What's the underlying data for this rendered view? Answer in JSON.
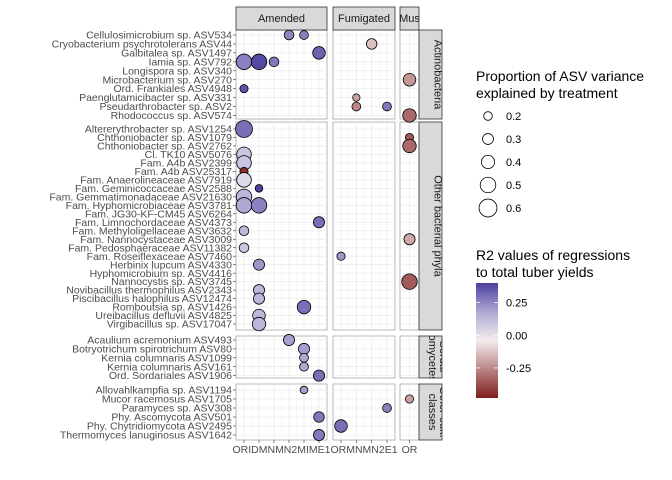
{
  "chart_data": {
    "type": "scatter",
    "subtype": "faceted bubble plot",
    "col_facets": [
      {
        "label": "Amended",
        "x": [
          "ORI",
          "D",
          "MN",
          "MN2",
          "MI",
          "ME1"
        ]
      },
      {
        "label": "Fumigated",
        "x": [
          "OR",
          "MN",
          "MN2",
          "E1"
        ]
      },
      {
        "label": "Mus",
        "x": [
          "OR"
        ]
      }
    ],
    "x_axis_text": {
      "Amended": "ORIDMNMN2MIME1",
      "Fumigated": "ORMNMN2E1",
      "Mus": "OR"
    },
    "row_facets": [
      {
        "label": "Actinobacteria",
        "label_lines": [
          "Actinobacteria"
        ],
        "taxa": [
          "Cellulosimicrobium sp. ASV534",
          "Cryobacterium psychrotolerans ASV44",
          "Galbitalea sp. ASV1497",
          "Iamia sp. ASV792",
          "Longispora sp. ASV340",
          "Microbacterium sp. ASV270",
          "Ord. Frankiales ASV4948",
          "Paenglutamicibacter sp. ASV331",
          "Pseudarthrobacter sp. ASV2",
          "Rhodococcus sp. ASV574"
        ]
      },
      {
        "label": "Other bacterial phyla",
        "label_lines": [
          "Other bacterial phyla"
        ],
        "taxa": [
          "Altererythrobacter sp. ASV1254",
          "Chthoniobacter sp. ASV1079",
          "Chthoniobacter sp. ASV2762",
          "Cl. TK10 ASV5076",
          "Fam. A4b ASV2399",
          "Fam. A4b ASV25317",
          "Fam. Anaerolineaceae ASV7919",
          "Fam. Geminicoccaceae ASV2588",
          "Fam. Gemmatimonadaceae ASV21630",
          "Fam. Hyphomicrobiaceae ASV3781",
          "Fam. JG30-KF-CM45 ASV6264",
          "Fam. Limnochordaceae ASV4373",
          "Fam. Methyloligellaceae ASV3632",
          "Fam. Nannocystaceae ASV3009",
          "Fam. Pedosphaeraceae ASV11382",
          "Fam. Roseiflexaceae ASV7460",
          "Herbinix lupcum ASV4330",
          "Hyphomicrobium sp. ASV4416",
          "Nannocystis sp. ASV3745",
          "Novibacillus thermophilus ASV2343",
          "Piscibacillus halophilus ASV12474",
          "Romboutsia sp. ASV1426",
          "Ureibacillus defluvii ASV4825",
          "Virgibacillus sp. ASV17047"
        ]
      },
      {
        "label": "Sordariomycetes",
        "label_lines": [
          "Sordar",
          "iomycetes"
        ],
        "taxa": [
          "Acaulium acremonium ASV493",
          "Botryotrichum spirotrichum ASV80",
          "Kernia columnaris ASV1099",
          "Kernia columnaris ASV161",
          "Ord. Sordariales ASV1906"
        ]
      },
      {
        "label": "Other euk. classes",
        "label_lines": [
          "Other euk.",
          "classes"
        ],
        "taxa": [
          "Allovahlkampfia sp. ASV1194",
          "Mucor racemosus ASV1705",
          "Paramyces sp. ASV308",
          "Phy. Ascomycota ASV501",
          "Phy. Chytridiomycota ASV2495",
          "Thermomyces lanuginosus ASV1642"
        ]
      }
    ],
    "points": [
      {
        "row": 0,
        "taxon": 0,
        "col": 0,
        "x": "MN2",
        "size": 0.25,
        "r2": 0.25
      },
      {
        "row": 0,
        "taxon": 0,
        "col": 0,
        "x": "MI",
        "size": 0.22,
        "r2": 0.26
      },
      {
        "row": 0,
        "taxon": 1,
        "col": 1,
        "x": "MN2",
        "size": 0.28,
        "r2": -0.13
      },
      {
        "row": 0,
        "taxon": 2,
        "col": 0,
        "x": "ME1",
        "size": 0.35,
        "r2": 0.33
      },
      {
        "row": 0,
        "taxon": 3,
        "col": 0,
        "x": "MN",
        "size": 0.25,
        "r2": 0.28
      },
      {
        "row": 0,
        "taxon": 3,
        "col": 0,
        "x": "ORI",
        "size": 0.45,
        "r2": 0.26
      },
      {
        "row": 0,
        "taxon": 3,
        "col": 0,
        "x": "D",
        "size": 0.45,
        "r2": 0.38
      },
      {
        "row": 0,
        "taxon": 5,
        "col": 2,
        "x": "OR",
        "size": 0.35,
        "r2": -0.22
      },
      {
        "row": 0,
        "taxon": 6,
        "col": 0,
        "x": "ORI",
        "size": 0.2,
        "r2": 0.36
      },
      {
        "row": 0,
        "taxon": 7,
        "col": 1,
        "x": "MN",
        "size": 0.17,
        "r2": -0.2
      },
      {
        "row": 0,
        "taxon": 8,
        "col": 1,
        "x": "MN",
        "size": 0.22,
        "r2": -0.25
      },
      {
        "row": 0,
        "taxon": 8,
        "col": 1,
        "x": "E1",
        "size": 0.22,
        "r2": 0.28
      },
      {
        "row": 0,
        "taxon": 9,
        "col": 2,
        "x": "OR",
        "size": 0.38,
        "r2": -0.32
      },
      {
        "row": 1,
        "taxon": 0,
        "col": 0,
        "x": "ORI",
        "size": 0.5,
        "r2": 0.3
      },
      {
        "row": 1,
        "taxon": 1,
        "col": 2,
        "x": "OR",
        "size": 0.2,
        "r2": -0.36
      },
      {
        "row": 1,
        "taxon": 2,
        "col": 2,
        "x": "OR",
        "size": 0.38,
        "r2": -0.32
      },
      {
        "row": 1,
        "taxon": 3,
        "col": 0,
        "x": "ORI",
        "size": 0.42,
        "r2": 0.12
      },
      {
        "row": 1,
        "taxon": 4,
        "col": 0,
        "x": "ORI",
        "size": 0.42,
        "r2": 0.12
      },
      {
        "row": 1,
        "taxon": 5,
        "col": 0,
        "x": "ORI",
        "size": 0.2,
        "r2": -0.45
      },
      {
        "row": 1,
        "taxon": 6,
        "col": 0,
        "x": "ORI",
        "size": 0.42,
        "r2": 0.08
      },
      {
        "row": 1,
        "taxon": 7,
        "col": 0,
        "x": "D",
        "size": 0.18,
        "r2": 0.4
      },
      {
        "row": 1,
        "taxon": 8,
        "col": 0,
        "x": "ORI",
        "size": 0.45,
        "r2": 0.15
      },
      {
        "row": 1,
        "taxon": 9,
        "col": 0,
        "x": "ORI",
        "size": 0.45,
        "r2": 0.18
      },
      {
        "row": 1,
        "taxon": 9,
        "col": 0,
        "x": "D",
        "size": 0.45,
        "r2": 0.26
      },
      {
        "row": 1,
        "taxon": 11,
        "col": 0,
        "x": "ME1",
        "size": 0.3,
        "r2": 0.3
      },
      {
        "row": 1,
        "taxon": 12,
        "col": 0,
        "x": "ORI",
        "size": 0.25,
        "r2": 0.15
      },
      {
        "row": 1,
        "taxon": 13,
        "col": 2,
        "x": "OR",
        "size": 0.3,
        "r2": -0.18
      },
      {
        "row": 1,
        "taxon": 14,
        "col": 0,
        "x": "ORI",
        "size": 0.25,
        "r2": 0.12
      },
      {
        "row": 1,
        "taxon": 15,
        "col": 1,
        "x": "OR",
        "size": 0.2,
        "r2": 0.22
      },
      {
        "row": 1,
        "taxon": 16,
        "col": 0,
        "x": "D",
        "size": 0.3,
        "r2": 0.22
      },
      {
        "row": 1,
        "taxon": 18,
        "col": 2,
        "x": "OR",
        "size": 0.45,
        "r2": -0.35
      },
      {
        "row": 1,
        "taxon": 19,
        "col": 0,
        "x": "D",
        "size": 0.3,
        "r2": 0.15
      },
      {
        "row": 1,
        "taxon": 20,
        "col": 0,
        "x": "D",
        "size": 0.3,
        "r2": 0.15
      },
      {
        "row": 1,
        "taxon": 21,
        "col": 0,
        "x": "MI",
        "size": 0.38,
        "r2": 0.3
      },
      {
        "row": 1,
        "taxon": 22,
        "col": 0,
        "x": "D",
        "size": 0.35,
        "r2": 0.15
      },
      {
        "row": 1,
        "taxon": 23,
        "col": 0,
        "x": "D",
        "size": 0.38,
        "r2": 0.15
      },
      {
        "row": 2,
        "taxon": 0,
        "col": 0,
        "x": "MN2",
        "size": 0.3,
        "r2": 0.2
      },
      {
        "row": 2,
        "taxon": 1,
        "col": 0,
        "x": "MI",
        "size": 0.3,
        "r2": 0.2
      },
      {
        "row": 2,
        "taxon": 2,
        "col": 0,
        "x": "MI",
        "size": 0.22,
        "r2": 0.18
      },
      {
        "row": 2,
        "taxon": 3,
        "col": 0,
        "x": "MI",
        "size": 0.22,
        "r2": 0.18
      },
      {
        "row": 2,
        "taxon": 4,
        "col": 0,
        "x": "ME1",
        "size": 0.3,
        "r2": 0.3
      },
      {
        "row": 3,
        "taxon": 0,
        "col": 0,
        "x": "MI",
        "size": 0.18,
        "r2": 0.2
      },
      {
        "row": 3,
        "taxon": 1,
        "col": 2,
        "x": "OR",
        "size": 0.2,
        "r2": -0.2
      },
      {
        "row": 3,
        "taxon": 2,
        "col": 1,
        "x": "E1",
        "size": 0.22,
        "r2": 0.26
      },
      {
        "row": 3,
        "taxon": 3,
        "col": 0,
        "x": "ME1",
        "size": 0.28,
        "r2": 0.28
      },
      {
        "row": 3,
        "taxon": 4,
        "col": 1,
        "x": "OR",
        "size": 0.35,
        "r2": 0.3
      },
      {
        "row": 3,
        "taxon": 5,
        "col": 0,
        "x": "ME1",
        "size": 0.3,
        "r2": 0.28
      }
    ],
    "size_legend": {
      "title": [
        "Proportion of ASV variance",
        "explained by treatment"
      ],
      "breaks": [
        0.2,
        0.3,
        0.4,
        0.5,
        0.6
      ],
      "labels": [
        "0.2",
        "0.3",
        "0.4",
        "0.5",
        "0.6"
      ]
    },
    "color_legend": {
      "title": [
        "R2 values of regressions",
        "to total tuber yields"
      ],
      "breaks": [
        0.25,
        0,
        -0.25
      ],
      "labels": [
        "0.25",
        "0.00",
        "-0.25"
      ],
      "limits": [
        -0.48,
        0.4
      ],
      "low_color": "#7f1d1d",
      "mid_color": "#ffffff",
      "high_color": "#4b3f9e"
    },
    "grid": true,
    "legend_position": "right"
  }
}
